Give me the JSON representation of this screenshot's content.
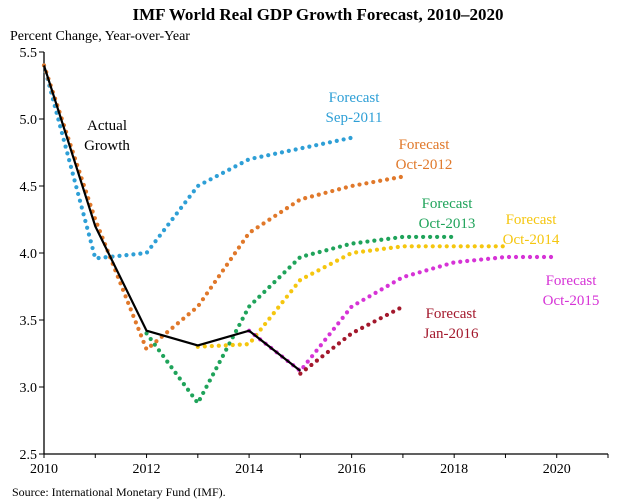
{
  "chart_data": {
    "type": "line",
    "title": "IMF World Real GDP Growth Forecast, 2010–2020",
    "ylabel": "Percent Change, Year-over-Year",
    "source": "Source: International Monetary Fund (IMF).",
    "xlim": [
      2010,
      2021
    ],
    "ylim": [
      2.5,
      5.5
    ],
    "x_ticks": [
      2010,
      2012,
      2014,
      2016,
      2018,
      2020
    ],
    "y_ticks": [
      2.5,
      3.0,
      3.5,
      4.0,
      4.5,
      5.0,
      5.5
    ],
    "x_tick_labels": [
      "2010",
      "2012",
      "2014",
      "2016",
      "2018",
      "2020"
    ],
    "y_tick_labels": [
      "2.5",
      "3.0",
      "3.5",
      "4.0",
      "4.5",
      "5.0",
      "5.5"
    ],
    "grid": false,
    "legend": "none",
    "series": [
      {
        "name": "Actual Growth",
        "label_lines": [
          "Actual",
          "Growth"
        ],
        "style": "solid",
        "color": "#000000",
        "x": [
          2010,
          2011,
          2012,
          2013,
          2014,
          2015
        ],
        "y": [
          5.4,
          4.2,
          3.42,
          3.31,
          3.42,
          3.12
        ]
      },
      {
        "name": "Forecast Sep-2011",
        "label_lines": [
          "Forecast",
          "Sep-2011"
        ],
        "style": "dotted",
        "color": "#2e9fd6",
        "x": [
          2010,
          2011,
          2012,
          2013,
          2014,
          2015,
          2016
        ],
        "y": [
          5.4,
          3.96,
          4.0,
          4.5,
          4.7,
          4.78,
          4.86
        ]
      },
      {
        "name": "Forecast Oct-2012",
        "label_lines": [
          "Forecast",
          "Oct-2012"
        ],
        "style": "dotted",
        "color": "#e0782a",
        "x": [
          2010,
          2011,
          2012,
          2013,
          2014,
          2015,
          2016,
          2017
        ],
        "y": [
          5.4,
          4.25,
          3.28,
          3.6,
          4.15,
          4.4,
          4.5,
          4.57
        ]
      },
      {
        "name": "Forecast Oct-2013",
        "label_lines": [
          "Forecast",
          "Oct-2013"
        ],
        "style": "dotted",
        "color": "#1fa35a",
        "x": [
          2012,
          2013,
          2014,
          2015,
          2016,
          2017,
          2018
        ],
        "y": [
          3.4,
          2.88,
          3.6,
          3.97,
          4.07,
          4.12,
          4.12
        ]
      },
      {
        "name": "Forecast Oct-2014",
        "label_lines": [
          "Forecast",
          "Oct-2014"
        ],
        "style": "dotted",
        "color": "#f5c60f",
        "x": [
          2013,
          2014,
          2015,
          2016,
          2017,
          2018,
          2019
        ],
        "y": [
          3.3,
          3.32,
          3.8,
          4.0,
          4.05,
          4.05,
          4.05
        ]
      },
      {
        "name": "Forecast Oct-2015",
        "label_lines": [
          "Forecast",
          "Oct-2015"
        ],
        "style": "dotted",
        "color": "#d633d6",
        "x": [
          2014,
          2015,
          2016,
          2017,
          2018,
          2019,
          2020
        ],
        "y": [
          3.42,
          3.12,
          3.6,
          3.82,
          3.93,
          3.97,
          3.97
        ]
      },
      {
        "name": "Forecast Jan-2016",
        "label_lines": [
          "Forecast",
          "Jan-2016"
        ],
        "style": "dotted",
        "color": "#a3182c",
        "x": [
          2015,
          2016,
          2017
        ],
        "y": [
          3.1,
          3.4,
          3.6
        ]
      }
    ]
  }
}
